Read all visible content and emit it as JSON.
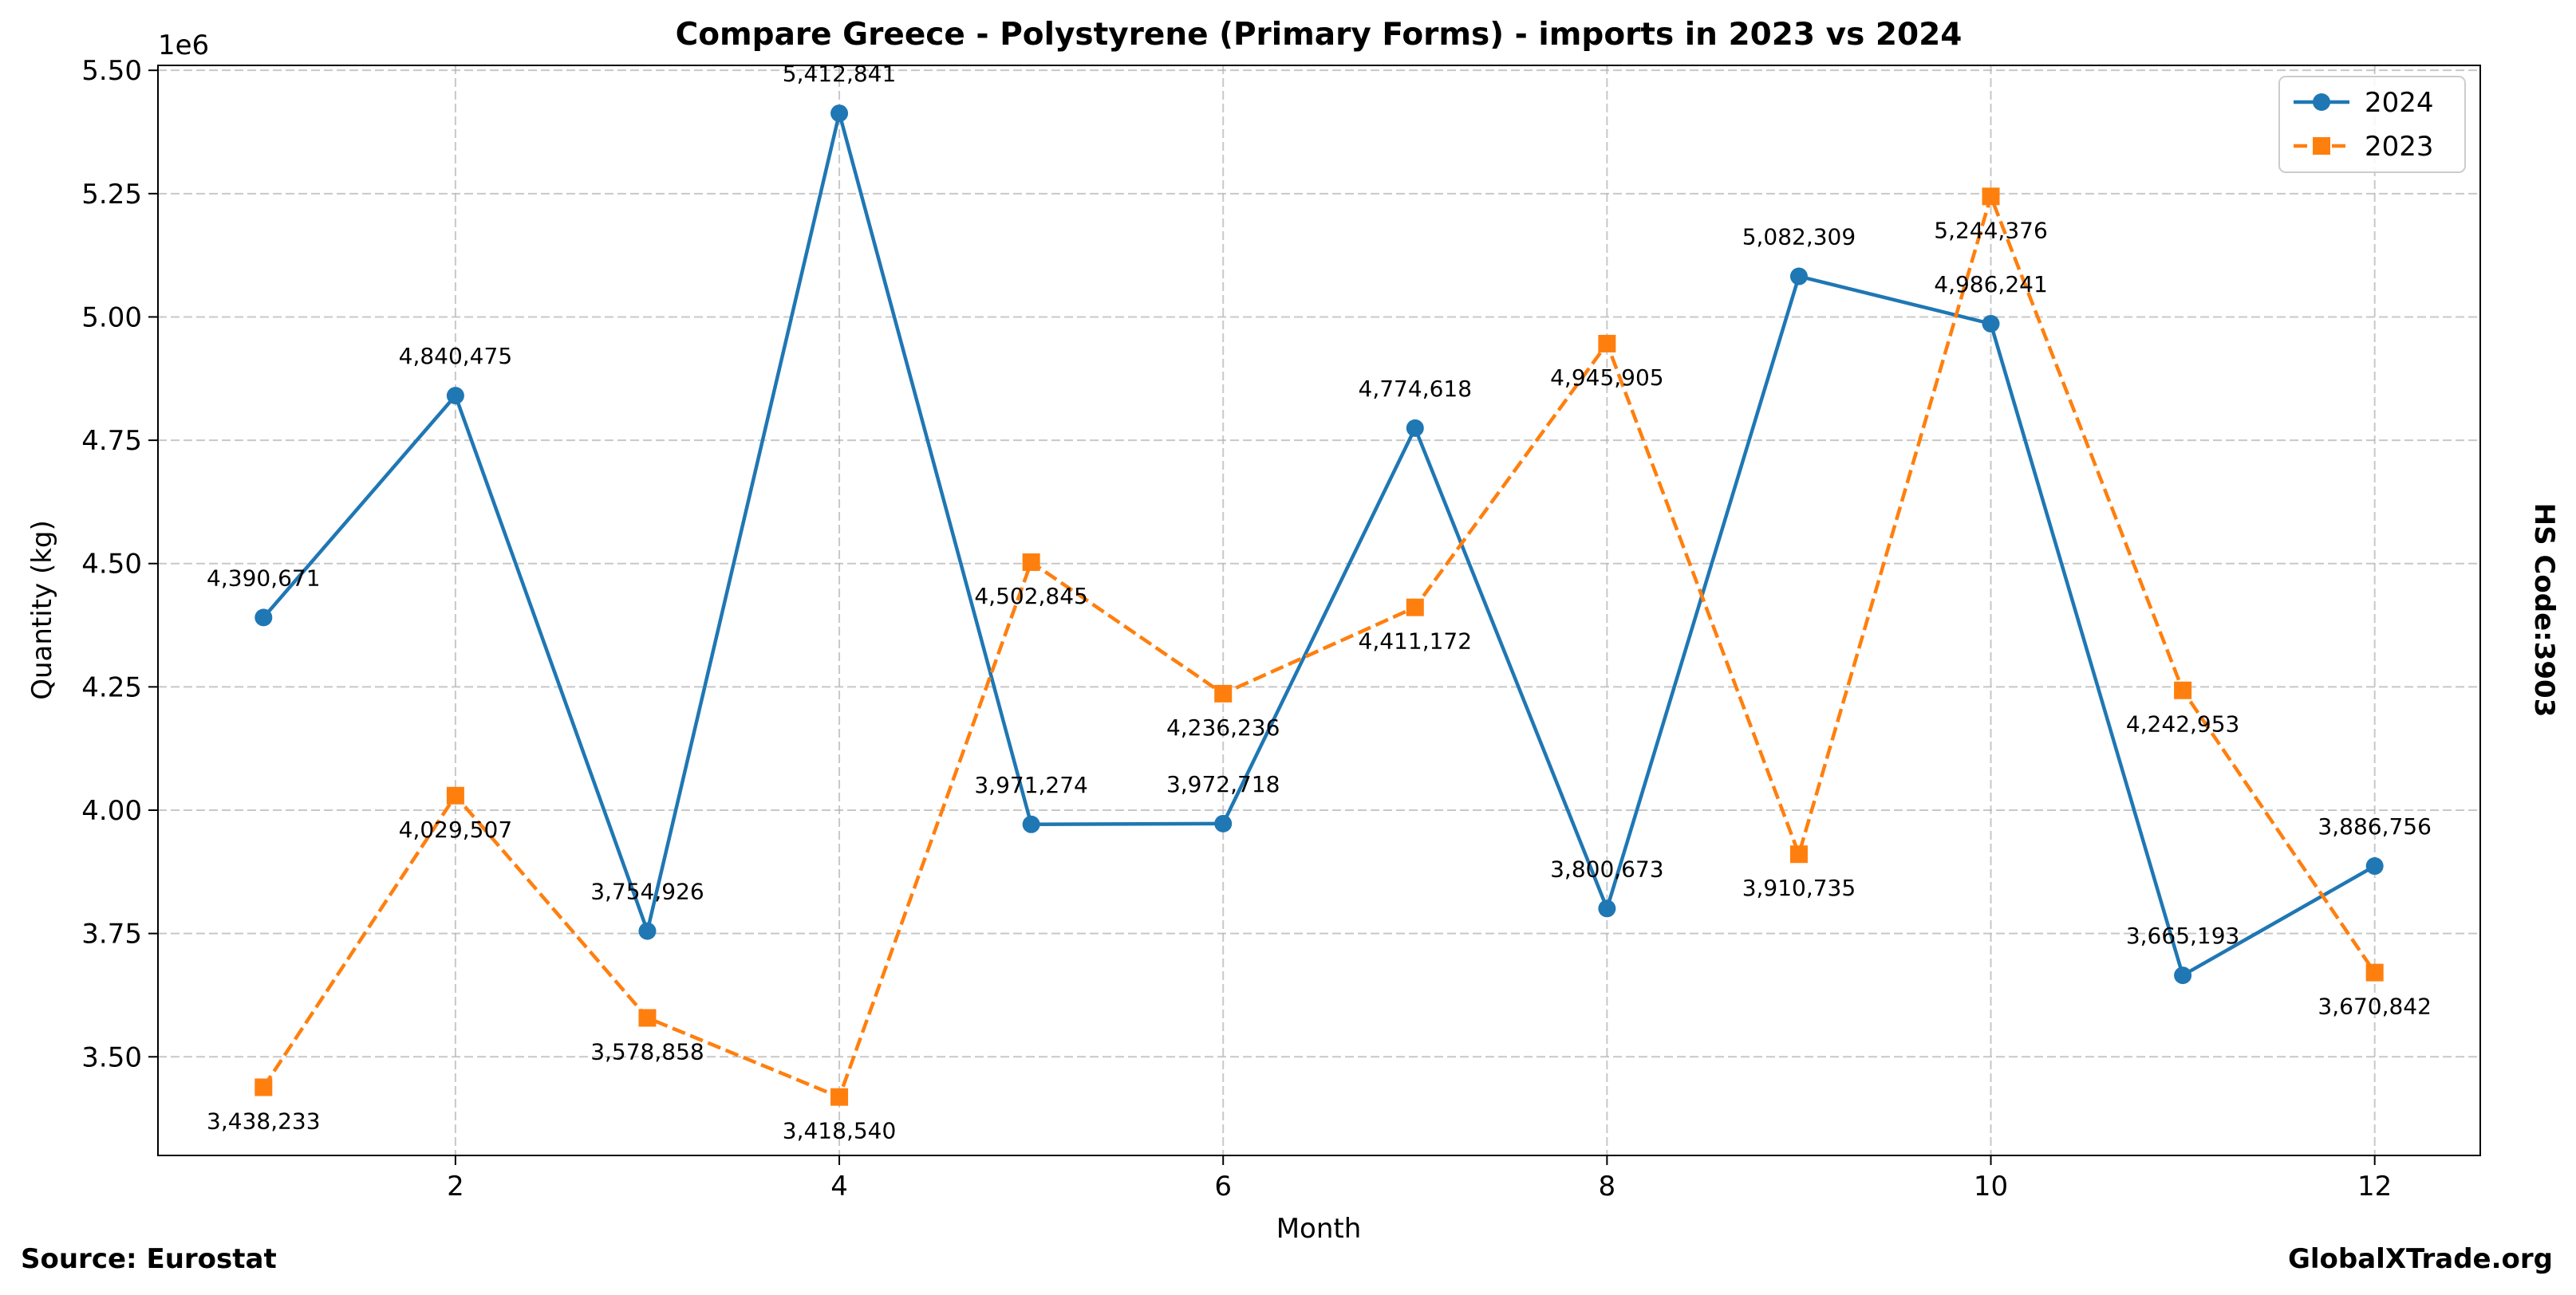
{
  "chart_data": {
    "type": "line",
    "title": "Compare Greece - Polystyrene (Primary Forms) - imports in 2023 vs 2024",
    "xlabel": "Month",
    "ylabel": "Quantity (kg)",
    "y_offset_label": "1e6",
    "xlim": [
      0.45,
      12.55
    ],
    "ylim": [
      3.3,
      5.51
    ],
    "x_ticks": [
      2,
      4,
      6,
      8,
      10,
      12
    ],
    "y_ticks": [
      3.5,
      3.75,
      4.0,
      4.25,
      4.5,
      4.75,
      5.0,
      5.25,
      5.5
    ],
    "grid": true,
    "legend_position": "top-right",
    "x": [
      1,
      2,
      3,
      4,
      5,
      6,
      7,
      8,
      9,
      10,
      11,
      12
    ],
    "series": [
      {
        "name": "2024",
        "color": "#1f77b4",
        "marker": "circle",
        "linestyle": "solid",
        "values": [
          4390671,
          4840475,
          3754926,
          5412841,
          3971274,
          3972718,
          4774618,
          3800673,
          5082309,
          4986241,
          3665193,
          3886756
        ],
        "labels": [
          "4,390,671",
          "4,840,475",
          "3,754,926",
          "5,412,841",
          "3,971,274",
          "3,972,718",
          "4,774,618",
          "3,800,673",
          "5,082,309",
          "4,986,241",
          "3,665,193",
          "3,886,756"
        ]
      },
      {
        "name": "2023",
        "color": "#ff7f0e",
        "marker": "square",
        "linestyle": "dashed",
        "values": [
          3438233,
          4029507,
          3578858,
          3418540,
          4502845,
          4236236,
          4411172,
          4945905,
          3910735,
          5244376,
          4242953,
          3670842
        ],
        "labels": [
          "3,438,233",
          "4,029,507",
          "3,578,858",
          "3,418,540",
          "4,502,845",
          "4,236,236",
          "4,411,172",
          "4,945,905",
          "3,910,735",
          "5,244,376",
          "4,242,953",
          "3,670,842"
        ]
      }
    ]
  },
  "footer": {
    "source": "Source: Eurostat",
    "brand": "GlobalXTrade.org",
    "hs_code": "HS Code:3903"
  }
}
